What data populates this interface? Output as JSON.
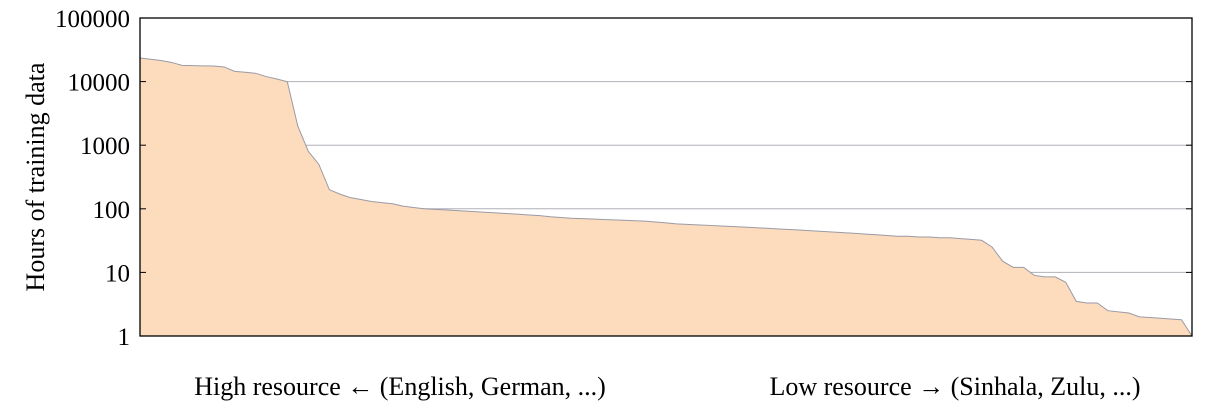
{
  "chart_data": {
    "type": "area",
    "title": "",
    "xlabel_left": "High resource ← (English, German, ...)",
    "xlabel_right": "Low resource → (Sinhala, Zulu, ...)",
    "ylabel": "Hours of training data",
    "y_scale": "log",
    "ylim": [
      1,
      100000
    ],
    "y_ticks": [
      "1",
      "10",
      "100",
      "1000",
      "10000",
      "100000"
    ],
    "grid": "horizontal",
    "legend": "none",
    "colors": {
      "fill": "#fddcbd",
      "line": "#9a9aa6",
      "grid": "#b0b0b8",
      "frame": "#000000"
    },
    "x": [
      0,
      1,
      2,
      3,
      4,
      5,
      6,
      7,
      8,
      9,
      10,
      11,
      12,
      13,
      14,
      15,
      16,
      17,
      18,
      19,
      20,
      21,
      22,
      23,
      24,
      25,
      26,
      27,
      28,
      29,
      30,
      31,
      32,
      33,
      34,
      35,
      36,
      37,
      38,
      39,
      40,
      41,
      42,
      43,
      44,
      45,
      46,
      47,
      48,
      49,
      50,
      51,
      52,
      53,
      54,
      55,
      56,
      57,
      58,
      59,
      60,
      61,
      62,
      63,
      64,
      65,
      66,
      67,
      68,
      69,
      70,
      71,
      72,
      73,
      74,
      75,
      76,
      77,
      78,
      79,
      80,
      81,
      82,
      83,
      84,
      85,
      86,
      87,
      88,
      89,
      90,
      91,
      92,
      93,
      94,
      95,
      96,
      97,
      98,
      99,
      100
    ],
    "values": [
      23500,
      22500,
      21500,
      20000,
      18000,
      17800,
      17700,
      17600,
      17000,
      14500,
      14000,
      13500,
      12000,
      11000,
      10000,
      2000,
      800,
      500,
      200,
      170,
      150,
      140,
      130,
      125,
      120,
      110,
      105,
      100,
      98,
      96,
      94,
      92,
      90,
      88,
      86,
      84,
      82,
      80,
      78,
      75,
      73,
      71,
      70,
      69,
      68,
      67,
      66,
      65,
      64,
      62,
      60,
      58,
      57,
      56,
      55,
      54,
      53,
      52,
      51,
      50,
      49,
      48,
      47,
      46,
      45,
      44,
      43,
      42,
      41,
      40,
      39,
      38,
      37,
      37,
      36,
      36,
      35,
      35,
      34,
      33,
      32,
      25,
      15,
      12,
      12,
      9,
      8.5,
      8.5,
      7,
      3.5,
      3.3,
      3.3,
      2.5,
      2.4,
      2.3,
      2.0,
      1.95,
      1.9,
      1.85,
      1.8,
      1.0
    ]
  }
}
